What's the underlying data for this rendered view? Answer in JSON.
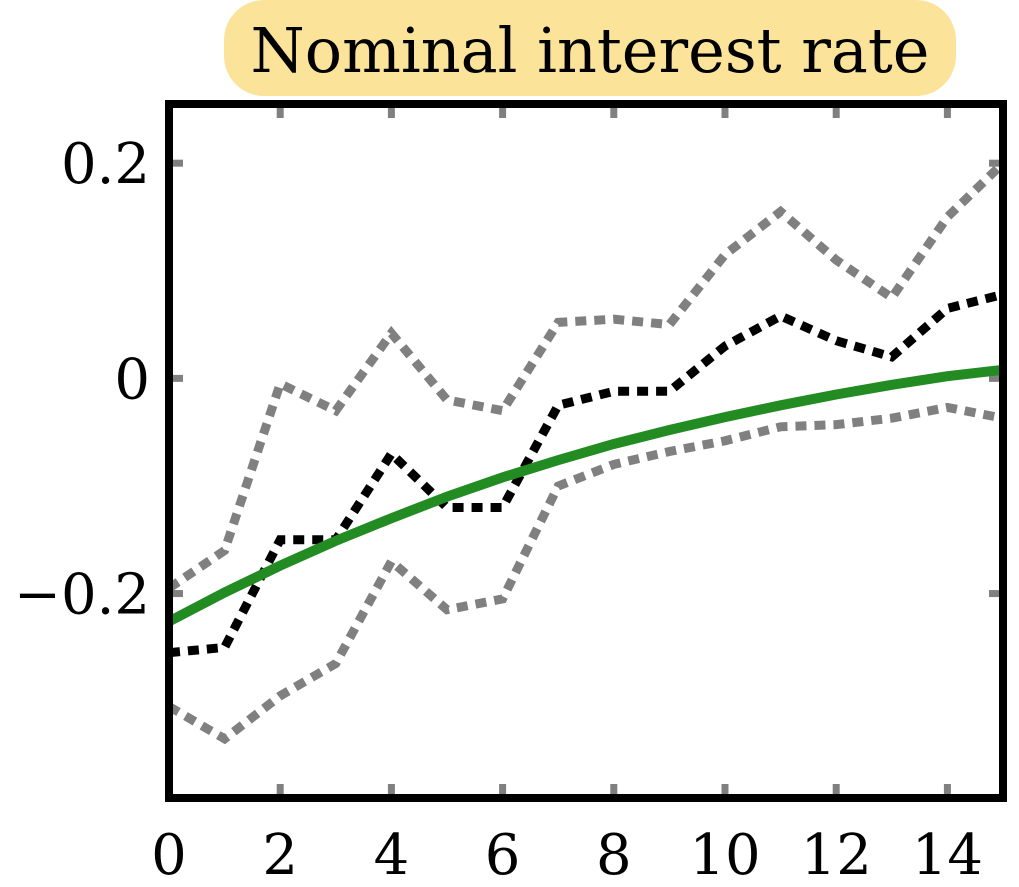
{
  "chart_data": {
    "type": "line",
    "title": "Nominal interest rate",
    "xlabel": "",
    "ylabel": "",
    "xlim": [
      0,
      15
    ],
    "ylim": [
      -0.39,
      0.255
    ],
    "x_ticks": [
      0,
      2,
      4,
      6,
      8,
      10,
      12,
      14
    ],
    "x_tick_labels": [
      "0",
      "2",
      "4",
      "6",
      "8",
      "10",
      "12",
      "14"
    ],
    "y_ticks": [
      -0.2,
      0,
      0.2
    ],
    "y_tick_labels": [
      "−0.2",
      "0",
      "0.2"
    ],
    "x": [
      0,
      1,
      2,
      3,
      4,
      5,
      6,
      7,
      8,
      9,
      10,
      11,
      12,
      13,
      14,
      15
    ],
    "grid": false,
    "legend": "none",
    "series": [
      {
        "style": "solid",
        "color": "#228b22",
        "values": [
          -0.226,
          -0.199,
          -0.174,
          -0.151,
          -0.13,
          -0.11,
          -0.092,
          -0.076,
          -0.061,
          -0.048,
          -0.036,
          -0.025,
          -0.015,
          -0.006,
          0.002,
          0.008
        ]
      },
      {
        "style": "dotted",
        "color": "#000000",
        "values": [
          -0.255,
          -0.25,
          -0.15,
          -0.15,
          -0.07,
          -0.12,
          -0.12,
          -0.025,
          -0.012,
          -0.012,
          0.03,
          0.058,
          0.035,
          0.02,
          0.065,
          0.078
        ]
      },
      {
        "style": "dotted",
        "color": "#808080",
        "values": [
          -0.195,
          -0.16,
          -0.005,
          -0.03,
          0.042,
          -0.02,
          -0.03,
          0.052,
          0.055,
          0.05,
          0.115,
          0.155,
          0.11,
          0.075,
          0.15,
          0.2
        ]
      },
      {
        "style": "dotted",
        "color": "#808080",
        "values": [
          -0.305,
          -0.335,
          -0.295,
          -0.265,
          -0.17,
          -0.215,
          -0.205,
          -0.1,
          -0.08,
          -0.068,
          -0.058,
          -0.045,
          -0.043,
          -0.037,
          -0.027,
          -0.037
        ]
      }
    ]
  }
}
